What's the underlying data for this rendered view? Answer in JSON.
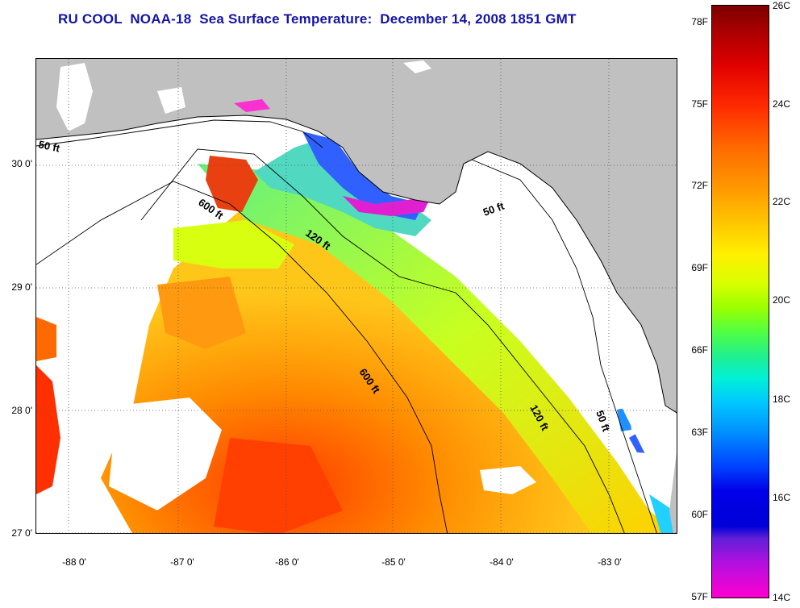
{
  "title": "RU COOL  NOAA-18  Sea Surface Temperature:  December 14, 2008 1851 GMT",
  "map": {
    "latitude_labels": [
      "30 0'",
      "29 0'",
      "28 0'",
      "27 0'"
    ],
    "longitude_labels": [
      "-88 0'",
      "-87 0'",
      "-86 0'",
      "-85 0'",
      "-84 0'",
      "-83 0'"
    ],
    "contour_labels": [
      "50 ft",
      "600 ft",
      "120 ft",
      "50 ft",
      "600 ft",
      "120 ft",
      "50 ft"
    ],
    "land_color": "#c0c0c0",
    "cloud_color": "#ffffff"
  },
  "colorbar": {
    "fahrenheit_labels": [
      "78F",
      "75F",
      "72F",
      "69F",
      "66F",
      "63F",
      "60F",
      "57F"
    ],
    "celsius_labels": [
      "26C",
      "24C",
      "22C",
      "20C",
      "18C",
      "16C",
      "14C"
    ]
  }
}
